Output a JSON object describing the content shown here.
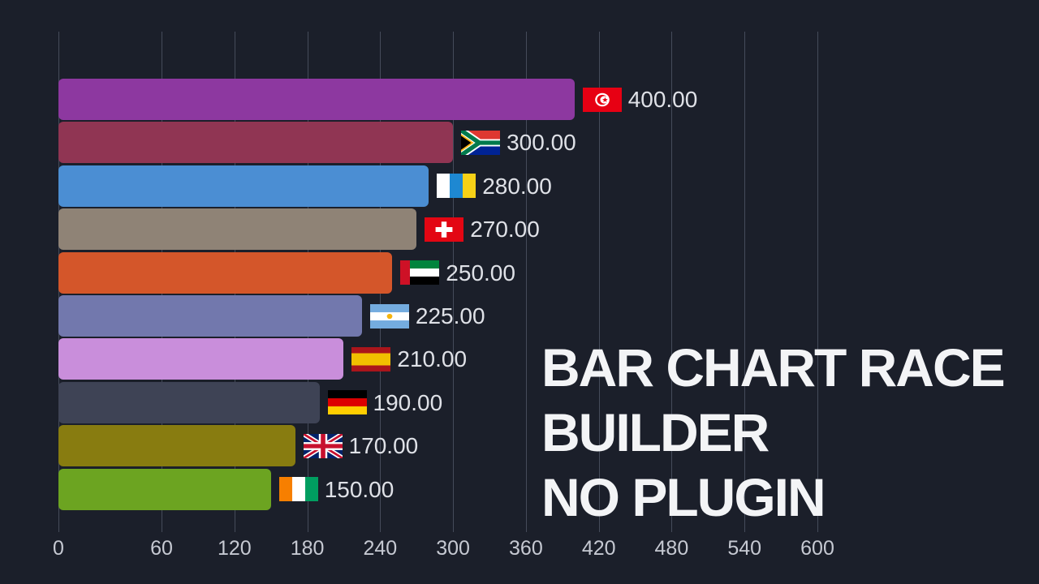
{
  "colors": {
    "background": "#1b1f2a",
    "gridline": "#454b5a",
    "value_text": "#dfe1e7",
    "axis_text": "#c6c9d2",
    "title_text": "#f3f4f6"
  },
  "title": {
    "line1": "BAR CHART RACE",
    "line2": "BUILDER",
    "line3": "NO PLUGIN"
  },
  "chart_data": {
    "type": "bar",
    "orientation": "horizontal",
    "title": "",
    "xlabel": "",
    "ylabel": "",
    "xlim": [
      0,
      600
    ],
    "grid": true,
    "legend": false,
    "x_ticks": [
      0,
      60,
      120,
      180,
      240,
      300,
      360,
      420,
      480,
      540,
      600
    ],
    "x_tick_labels": [
      "0",
      "60",
      "120",
      "180",
      "240",
      "300",
      "360",
      "420",
      "480",
      "540",
      "600"
    ],
    "bars": [
      {
        "country": "Tunisia",
        "flag_icon": "tunisia-flag-icon",
        "value": 400,
        "label": "400.00",
        "color": "#8d38a0"
      },
      {
        "country": "South Africa",
        "flag_icon": "south-africa-flag-icon",
        "value": 300,
        "label": "300.00",
        "color": "#903553"
      },
      {
        "country": "Canary Islands",
        "flag_icon": "canary-islands-flag-icon",
        "value": 280,
        "label": "280.00",
        "color": "#4b8ed3"
      },
      {
        "country": "Switzerland",
        "flag_icon": "switzerland-flag-icon",
        "value": 270,
        "label": "270.00",
        "color": "#8f8376"
      },
      {
        "country": "United Arab Emirates",
        "flag_icon": "uae-flag-icon",
        "value": 250,
        "label": "250.00",
        "color": "#d4562a"
      },
      {
        "country": "Argentina",
        "flag_icon": "argentina-flag-icon",
        "value": 225,
        "label": "225.00",
        "color": "#7278ad"
      },
      {
        "country": "Spain",
        "flag_icon": "spain-flag-icon",
        "value": 210,
        "label": "210.00",
        "color": "#c98edb"
      },
      {
        "country": "Germany",
        "flag_icon": "germany-flag-icon",
        "value": 190,
        "label": "190.00",
        "color": "#3e4355"
      },
      {
        "country": "United Kingdom",
        "flag_icon": "uk-flag-icon",
        "value": 170,
        "label": "170.00",
        "color": "#887c10"
      },
      {
        "country": "Ivory Coast",
        "flag_icon": "ivory-coast-flag-icon",
        "value": 150,
        "label": "150.00",
        "color": "#6ca421"
      }
    ]
  }
}
